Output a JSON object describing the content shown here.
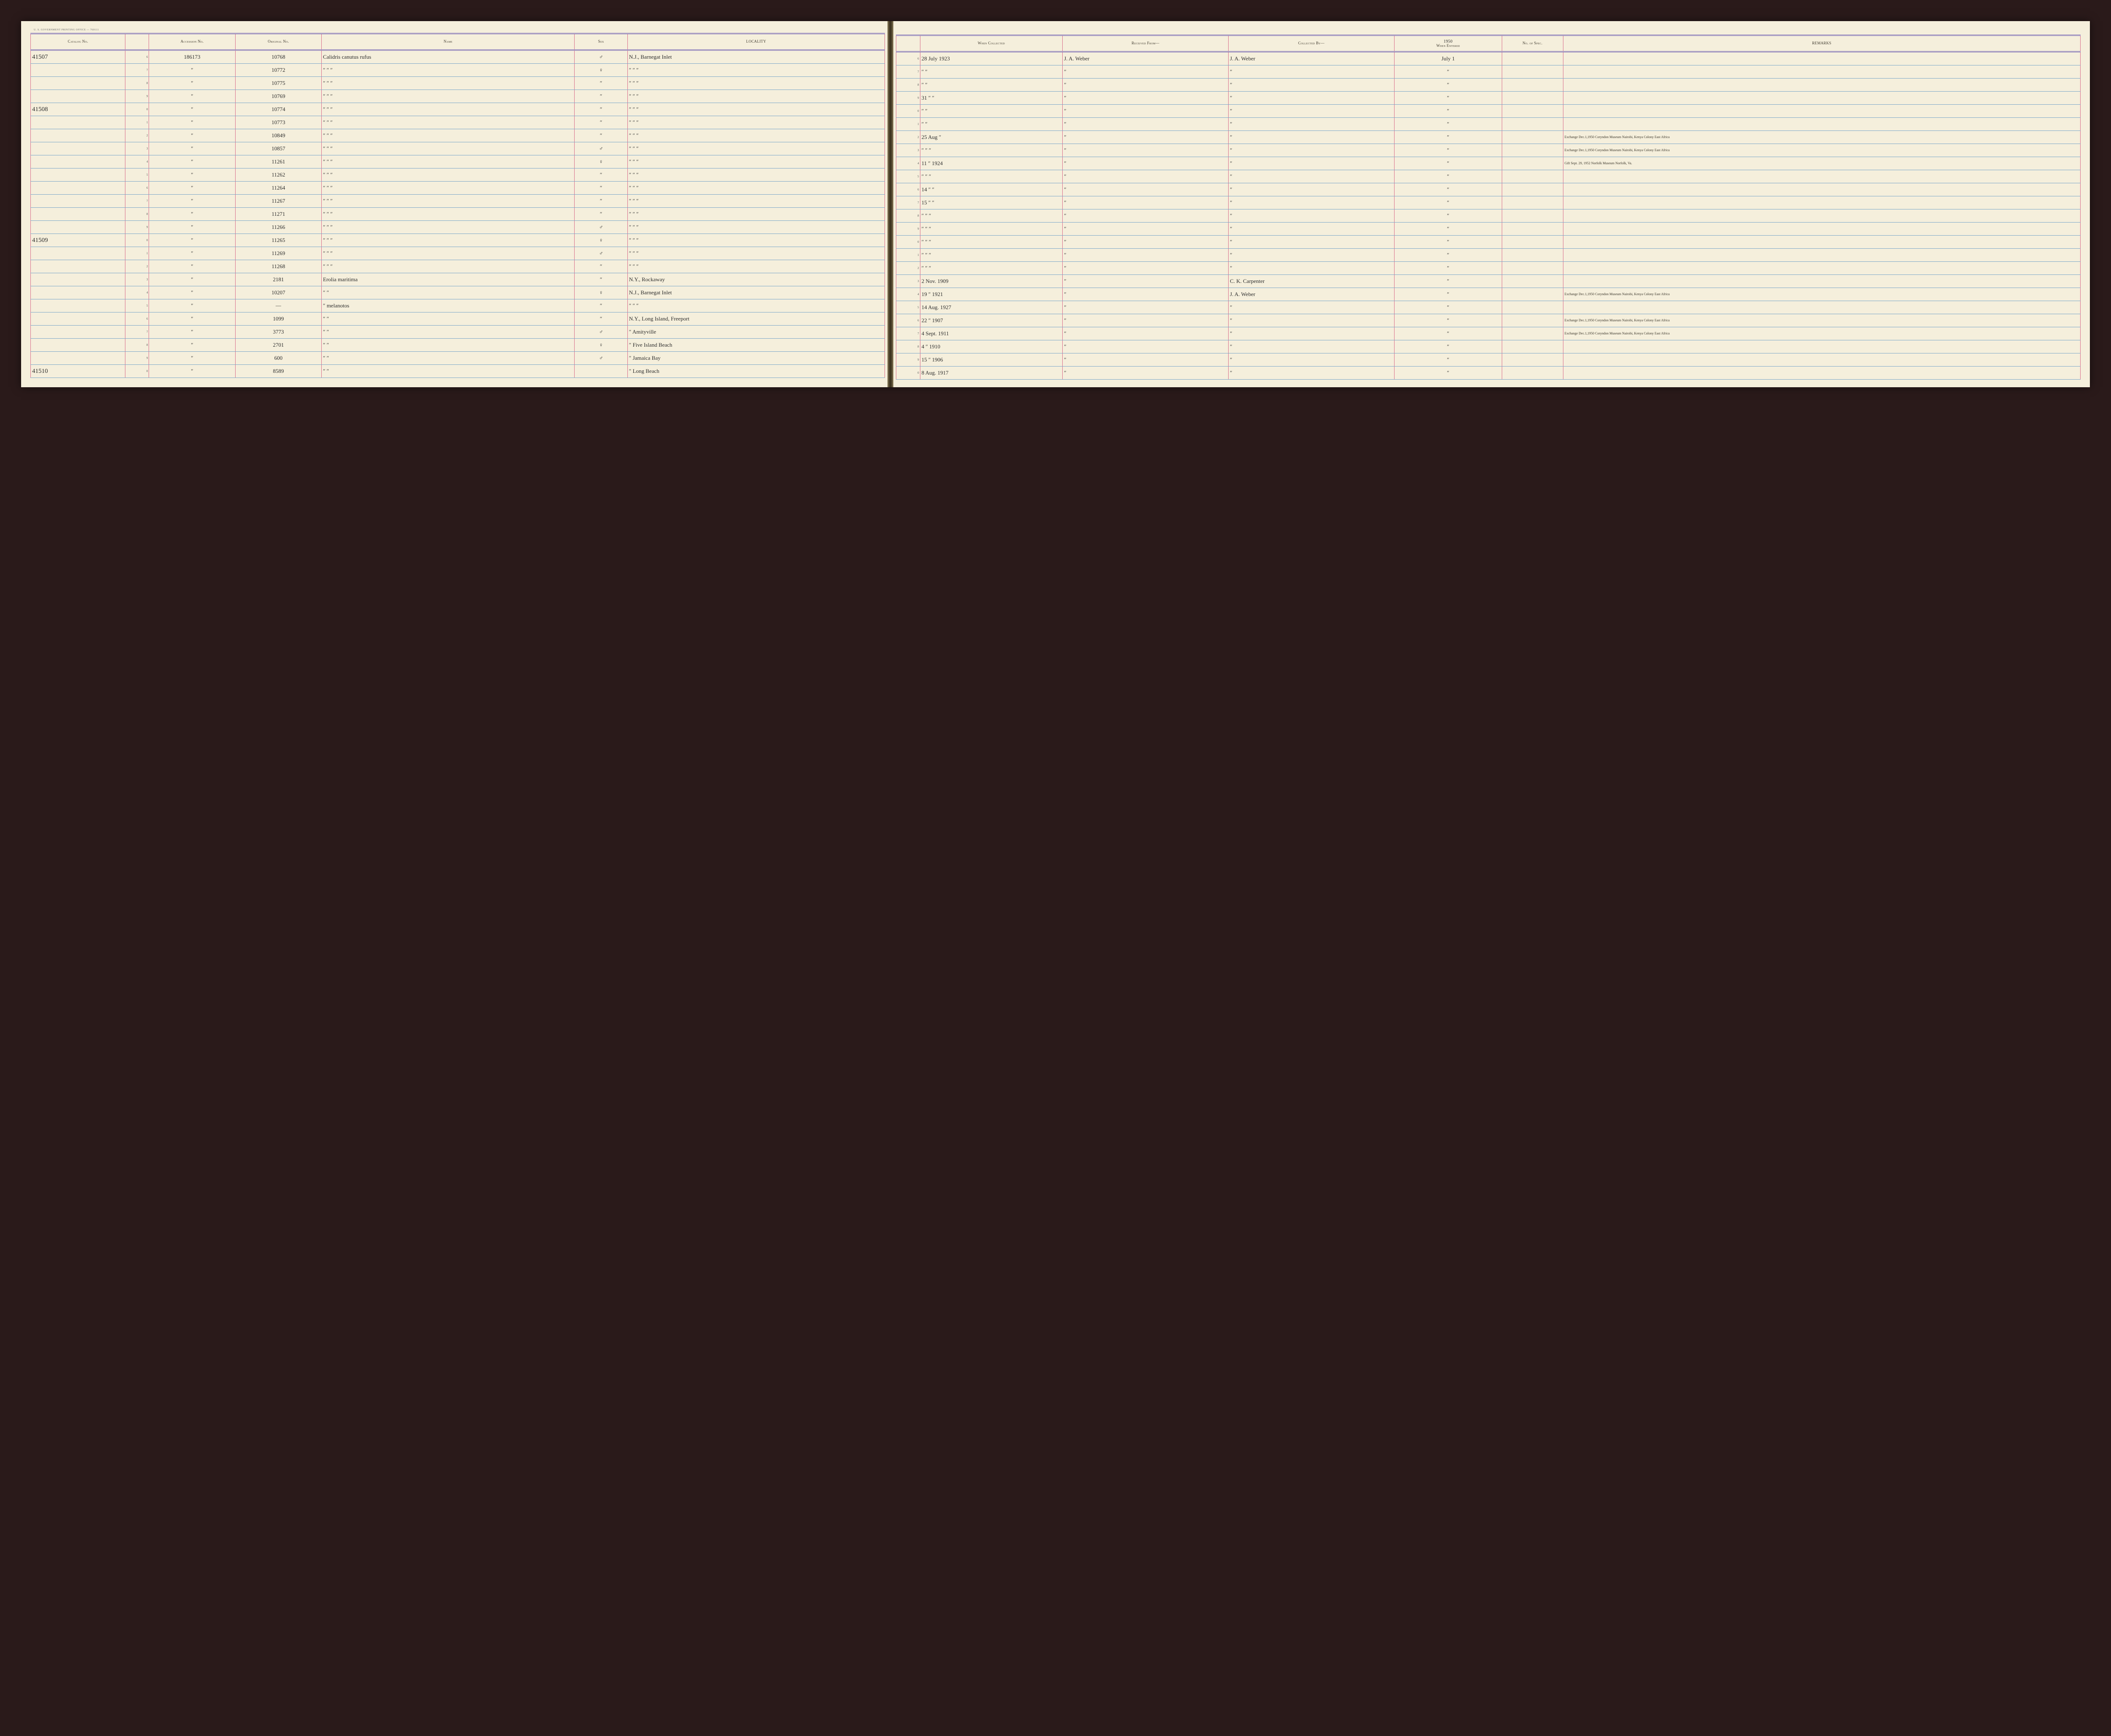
{
  "imprint": "U. S. GOVERNMENT PRINTING OFFICE — 760111",
  "headers": {
    "catalog": "Catalog No.",
    "accession": "Accession No.",
    "original": "Original No.",
    "name": "Name",
    "sex": "Sex",
    "locality": "LOCALITY",
    "when": "When Collected",
    "from": "Received From—",
    "by": "Collected By—",
    "entered": "When Entered",
    "spec": "No. of Spec.",
    "remarks": "REMARKS"
  },
  "entered_year_header": "1950",
  "rows": [
    {
      "cat": "41507",
      "d": "6",
      "acc": "186173",
      "orig": "10768",
      "name": "Calidris canutus rufus",
      "sex": "♂",
      "loc": "N.J., Barnegat Inlet",
      "dR": "6",
      "when": "28 July 1923",
      "from": "J. A. Weber",
      "by": "J. A. Weber",
      "ent": "July 1",
      "spec": "",
      "rem": ""
    },
    {
      "cat": "",
      "d": "7",
      "acc": "″",
      "orig": "10772",
      "name": "″   ″   ″",
      "sex": "♀",
      "loc": "″      ″      ″",
      "dR": "7",
      "when": "″   ″",
      "from": "″",
      "by": "″",
      "ent": "″",
      "spec": "",
      "rem": ""
    },
    {
      "cat": "",
      "d": "8",
      "acc": "″",
      "orig": "10775",
      "name": "″   ″   ″",
      "sex": "″",
      "loc": "″      ″      ″",
      "dR": "8",
      "when": "″   ″",
      "from": "″",
      "by": "″",
      "ent": "″",
      "spec": "",
      "rem": ""
    },
    {
      "cat": "",
      "d": "9",
      "acc": "″",
      "orig": "10769",
      "name": "″   ″   ″",
      "sex": "″",
      "loc": "″      ″      ″",
      "dR": "9",
      "when": "31   ″   ″",
      "from": "″",
      "by": "″",
      "ent": "″",
      "spec": "",
      "rem": ""
    },
    {
      "cat": "41508",
      "d": "0",
      "acc": "″",
      "orig": "10774",
      "name": "″   ″   ″",
      "sex": "″",
      "loc": "″      ″      ″",
      "dR": "0",
      "when": "″   ″",
      "from": "″",
      "by": "″",
      "ent": "″",
      "spec": "",
      "rem": ""
    },
    {
      "cat": "",
      "d": "1",
      "acc": "″",
      "orig": "10773",
      "name": "″   ″   ″",
      "sex": "″",
      "loc": "″      ″      ″",
      "dR": "1",
      "when": "″   ″",
      "from": "″",
      "by": "″",
      "ent": "″",
      "spec": "",
      "rem": ""
    },
    {
      "cat": "",
      "d": "2",
      "acc": "″",
      "orig": "10849",
      "name": "″   ″   ″",
      "sex": "″",
      "loc": "″      ″      ″",
      "dR": "2",
      "when": "25 Aug  ″",
      "from": "″",
      "by": "″",
      "ent": "″",
      "spec": "",
      "rem": "Exchange Dec.1,1950 Coryndon Museum Nairobi, Kenya Colony East Africa"
    },
    {
      "cat": "",
      "d": "3",
      "acc": "″",
      "orig": "10857",
      "name": "″   ″   ″",
      "sex": "♂",
      "loc": "″      ″      ″",
      "dR": "3",
      "when": "″   ″   ″",
      "from": "″",
      "by": "″",
      "ent": "″",
      "spec": "",
      "rem": "Exchange Dec.1,1950 Coryndon Museum Nairobi, Kenya Colony East Africa"
    },
    {
      "cat": "",
      "d": "4",
      "acc": "″",
      "orig": "11261",
      "name": "″   ″   ″",
      "sex": "♀",
      "loc": "″      ″      ″",
      "dR": "4",
      "when": "11  ″  1924",
      "from": "″",
      "by": "″",
      "ent": "″",
      "spec": "",
      "rem": "Gift Sept. 29, 1952 Norfolk Museum Norfolk, Va."
    },
    {
      "cat": "",
      "d": "5",
      "acc": "″",
      "orig": "11262",
      "name": "″   ″   ″",
      "sex": "″",
      "loc": "″      ″      ″",
      "dR": "5",
      "when": "″   ″   ″",
      "from": "″",
      "by": "″",
      "ent": "″",
      "spec": "",
      "rem": ""
    },
    {
      "cat": "",
      "d": "6",
      "acc": "″",
      "orig": "11264",
      "name": "″   ″   ″",
      "sex": "″",
      "loc": "″      ″      ″",
      "dR": "6",
      "when": "14  ″   ″",
      "from": "″",
      "by": "″",
      "ent": "″",
      "spec": "",
      "rem": ""
    },
    {
      "cat": "",
      "d": "7",
      "acc": "″",
      "orig": "11267",
      "name": "″   ″   ″",
      "sex": "″",
      "loc": "″      ″      ″",
      "dR": "7",
      "when": "15  ″   ″",
      "from": "″",
      "by": "″",
      "ent": "″",
      "spec": "",
      "rem": ""
    },
    {
      "cat": "",
      "d": "8",
      "acc": "″",
      "orig": "11271",
      "name": "″   ″   ″",
      "sex": "″",
      "loc": "″      ″      ″",
      "dR": "8",
      "when": "″   ″   ″",
      "from": "″",
      "by": "″",
      "ent": "″",
      "spec": "",
      "rem": ""
    },
    {
      "cat": "",
      "d": "9",
      "acc": "″",
      "orig": "11266",
      "name": "″   ″   ″",
      "sex": "♂",
      "loc": "″      ″      ″",
      "dR": "9",
      "when": "″   ″   ″",
      "from": "″",
      "by": "″",
      "ent": "″",
      "spec": "",
      "rem": ""
    },
    {
      "cat": "41509",
      "d": "0",
      "acc": "″",
      "orig": "11265",
      "name": "″   ″   ″",
      "sex": "♀",
      "loc": "″      ″      ″",
      "dR": "0",
      "when": "″   ″   ″",
      "from": "″",
      "by": "″",
      "ent": "″",
      "spec": "",
      "rem": ""
    },
    {
      "cat": "",
      "d": "1",
      "acc": "″",
      "orig": "11269",
      "name": "″   ″   ″",
      "sex": "♂",
      "loc": "″      ″      ″",
      "dR": "1",
      "when": "″   ″   ″",
      "from": "″",
      "by": "″",
      "ent": "″",
      "spec": "",
      "rem": ""
    },
    {
      "cat": "",
      "d": "2",
      "acc": "″",
      "orig": "11268",
      "name": "″   ″   ″",
      "sex": "″",
      "loc": "″      ″      ″",
      "dR": "2",
      "when": "″   ″   ″",
      "from": "″",
      "by": "″",
      "ent": "″",
      "spec": "",
      "rem": ""
    },
    {
      "cat": "",
      "d": "3",
      "acc": "″",
      "orig": "2181",
      "name": "Erolia maritima",
      "sex": "″",
      "loc": "N.Y., Rockaway",
      "dR": "3",
      "when": "2 Nov. 1909",
      "from": "″",
      "by": "C. K. Carpenter",
      "ent": "″",
      "spec": "",
      "rem": ""
    },
    {
      "cat": "",
      "d": "4",
      "acc": "″",
      "orig": "10207",
      "name": "″      ″",
      "sex": "♀",
      "loc": "N.J., Barnegat Inlet",
      "dR": "4",
      "when": "19  ″  1921",
      "from": "″",
      "by": "J. A. Weber",
      "ent": "″",
      "spec": "",
      "rem": "Exchange Dec.1,1950 Coryndon Museum Nairobi, Kenya Colony East Africa"
    },
    {
      "cat": "",
      "d": "5",
      "acc": "″",
      "orig": "—",
      "name": "″   melanotos",
      "sex": "″",
      "loc": "″      ″      ″",
      "dR": "5",
      "when": "14 Aug. 1927",
      "from": "″",
      "by": "″",
      "ent": "″",
      "spec": "",
      "rem": ""
    },
    {
      "cat": "",
      "d": "6",
      "acc": "″",
      "orig": "1099",
      "name": "″      ″",
      "sex": "″",
      "loc": "N.Y., Long Island, Freeport",
      "dR": "6",
      "when": "22  ″  1907",
      "from": "″",
      "by": "″",
      "ent": "″",
      "spec": "",
      "rem": "Exchange Dec.1,1950 Coryndon Museum Nairobi, Kenya Colony East Africa"
    },
    {
      "cat": "",
      "d": "7",
      "acc": "″",
      "orig": "3773",
      "name": "″      ″",
      "sex": "♂",
      "loc": "″   Amityville",
      "dR": "7",
      "when": "4 Sept. 1911",
      "from": "″",
      "by": "″",
      "ent": "″",
      "spec": "",
      "rem": "Exchange Dec.1,1950 Coryndon Museum Nairobi, Kenya Colony East Africa"
    },
    {
      "cat": "",
      "d": "8",
      "acc": "″",
      "orig": "2701",
      "name": "″      ″",
      "sex": "♀",
      "loc": "″   Five Island Beach",
      "dR": "8",
      "when": "4   ″  1910",
      "from": "″",
      "by": "″",
      "ent": "″",
      "spec": "",
      "rem": ""
    },
    {
      "cat": "",
      "d": "9",
      "acc": "″",
      "orig": "600",
      "name": "″      ″",
      "sex": "♂",
      "loc": "″   Jamaica Bay",
      "dR": "9",
      "when": "15  ″  1906",
      "from": "″",
      "by": "″",
      "ent": "″",
      "spec": "",
      "rem": ""
    },
    {
      "cat": "41510",
      "d": "0",
      "acc": "″",
      "orig": "8589",
      "name": "″      ″",
      "sex": "",
      "loc": "″   Long Beach",
      "dR": "0",
      "when": "8 Aug. 1917",
      "from": "″",
      "by": "″",
      "ent": "″",
      "spec": "",
      "rem": ""
    }
  ]
}
